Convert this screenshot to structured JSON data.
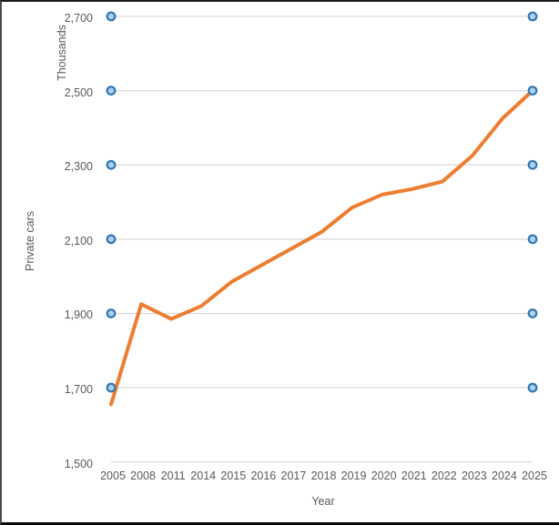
{
  "chart_data": {
    "type": "line",
    "categories": [
      "2005",
      "2008",
      "2011",
      "2014",
      "2015",
      "2016",
      "2017",
      "2018",
      "2019",
      "2020",
      "2021",
      "2022",
      "2023",
      "2024",
      "2025"
    ],
    "series": [
      {
        "name": "Private cars",
        "color": "#ED7D31",
        "values": [
          1655,
          1925,
          1885,
          1920,
          1985,
          2030,
          2075,
          2120,
          2185,
          2220,
          2235,
          2255,
          2325,
          2425,
          2500
        ]
      }
    ],
    "xlabel": "Year",
    "ylabel": "Private cars",
    "axis_units_label": "Thousands",
    "ylim": [
      1500,
      2700
    ],
    "ytick_step": 200,
    "ytick_labels": [
      "1,500",
      "1,700",
      "1,900",
      "2,100",
      "2,300",
      "2,500",
      "2,700"
    ],
    "grid": true,
    "legend": "none",
    "colors": {
      "gridline": "#D9D9D9",
      "axis_line": "#D6D6D6",
      "text": "#595959",
      "series_line": "#ED7D31",
      "handle_border": "#2F76B5",
      "handle_fill": "#AFD0EE"
    }
  }
}
